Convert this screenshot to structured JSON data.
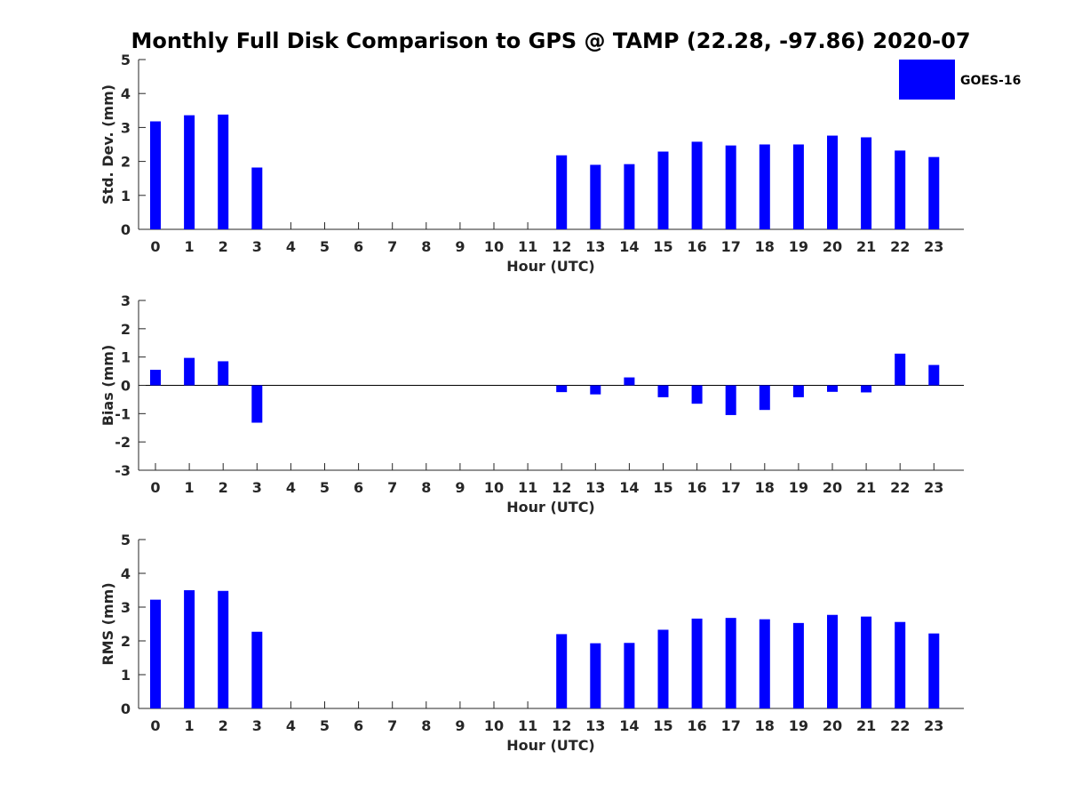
{
  "chart_title": "Monthly Full Disk Comparison to GPS @ TAMP (22.28, -97.86) 2020-07",
  "legend": {
    "label": "GOES-16",
    "color": "#0000ff",
    "placement": "top-right"
  },
  "chart_data": [
    {
      "type": "bar",
      "title": "",
      "xlabel": "Hour (UTC)",
      "ylabel": "Std. Dev. (mm)",
      "ylim": [
        0,
        5
      ],
      "yticks": [
        "0",
        "1",
        "2",
        "3",
        "4",
        "5"
      ],
      "categories": [
        "0",
        "1",
        "2",
        "3",
        "4",
        "5",
        "6",
        "7",
        "8",
        "9",
        "10",
        "11",
        "12",
        "13",
        "14",
        "15",
        "16",
        "17",
        "18",
        "19",
        "20",
        "21",
        "22",
        "23"
      ],
      "series": [
        {
          "name": "GOES-16",
          "color": "#0000ff",
          "values": [
            3.18,
            3.36,
            3.38,
            1.82,
            null,
            null,
            null,
            null,
            null,
            null,
            null,
            null,
            2.18,
            1.9,
            1.92,
            2.29,
            2.58,
            2.47,
            2.5,
            2.5,
            2.76,
            2.71,
            2.32,
            2.13
          ]
        }
      ]
    },
    {
      "type": "bar",
      "title": "",
      "xlabel": "Hour (UTC)",
      "ylabel": "Bias (mm)",
      "ylim": [
        -3,
        3
      ],
      "yticks": [
        "-3",
        "-2",
        "-1",
        "0",
        "1",
        "2",
        "3"
      ],
      "categories": [
        "0",
        "1",
        "2",
        "3",
        "4",
        "5",
        "6",
        "7",
        "8",
        "9",
        "10",
        "11",
        "12",
        "13",
        "14",
        "15",
        "16",
        "17",
        "18",
        "19",
        "20",
        "21",
        "22",
        "23"
      ],
      "series": [
        {
          "name": "GOES-16",
          "color": "#0000ff",
          "values": [
            0.55,
            0.97,
            0.85,
            -1.32,
            null,
            null,
            null,
            null,
            null,
            null,
            null,
            null,
            -0.24,
            -0.32,
            0.28,
            -0.42,
            -0.65,
            -1.05,
            -0.87,
            -0.42,
            -0.23,
            -0.25,
            1.12,
            0.72
          ]
        }
      ]
    },
    {
      "type": "bar",
      "title": "",
      "xlabel": "Hour (UTC)",
      "ylabel": "RMS (mm)",
      "ylim": [
        0,
        5
      ],
      "yticks": [
        "0",
        "1",
        "2",
        "3",
        "4",
        "5"
      ],
      "categories": [
        "0",
        "1",
        "2",
        "3",
        "4",
        "5",
        "6",
        "7",
        "8",
        "9",
        "10",
        "11",
        "12",
        "13",
        "14",
        "15",
        "16",
        "17",
        "18",
        "19",
        "20",
        "21",
        "22",
        "23"
      ],
      "series": [
        {
          "name": "GOES-16",
          "color": "#0000ff",
          "values": [
            3.22,
            3.5,
            3.48,
            2.27,
            null,
            null,
            null,
            null,
            null,
            null,
            null,
            null,
            2.2,
            1.93,
            1.94,
            2.33,
            2.66,
            2.68,
            2.64,
            2.53,
            2.77,
            2.72,
            2.56,
            2.22
          ]
        }
      ]
    }
  ]
}
